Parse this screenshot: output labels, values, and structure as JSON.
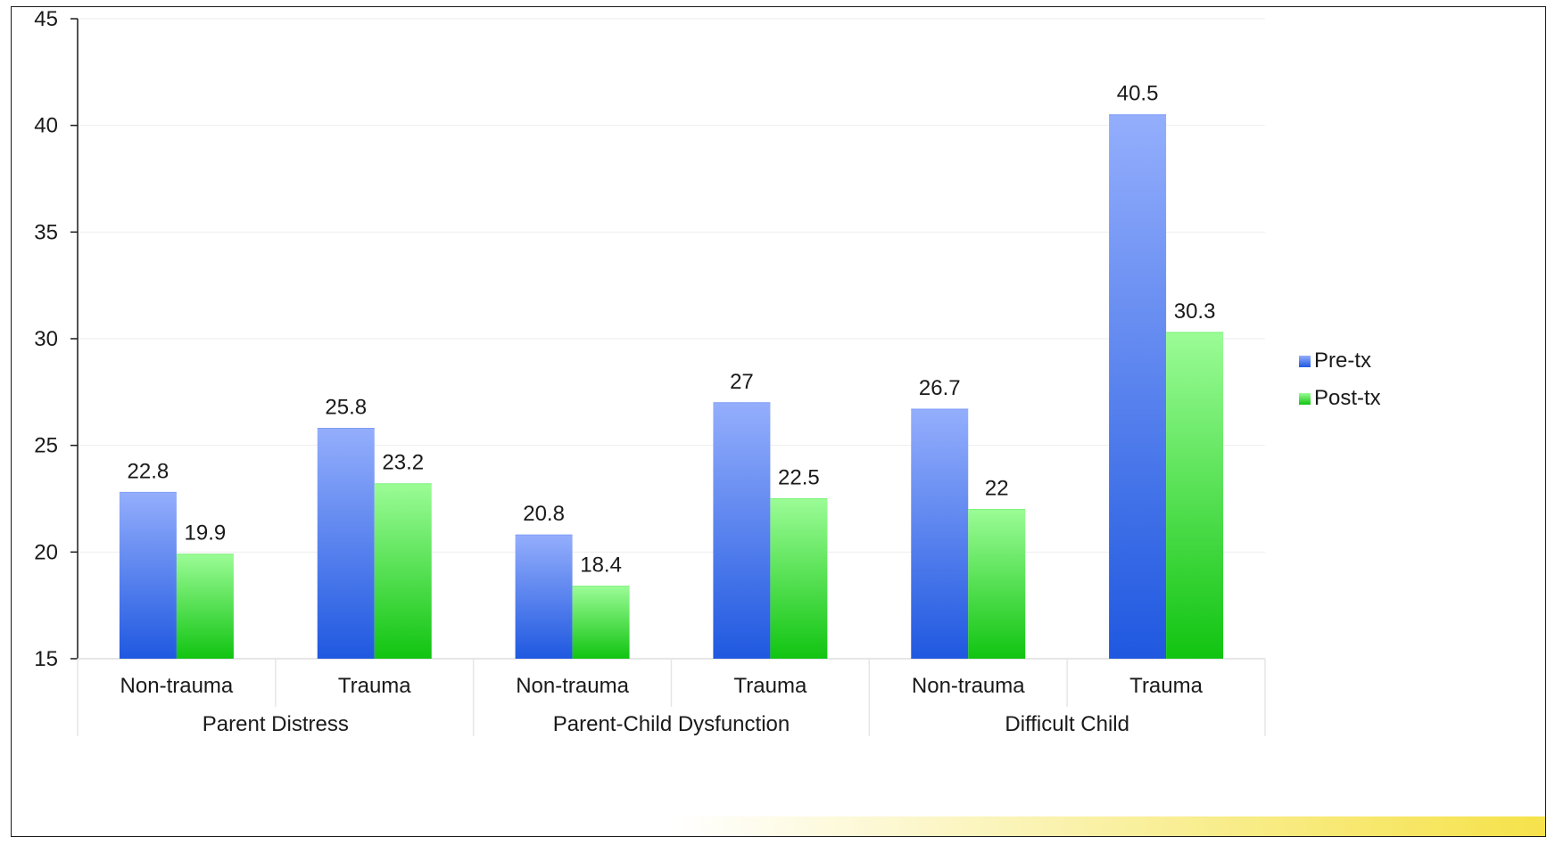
{
  "chart_data": {
    "type": "bar",
    "groups": [
      "Parent Distress",
      "Parent-Child Dysfunction",
      "Difficult Child"
    ],
    "categories": [
      "Non-trauma",
      "Trauma",
      "Non-trauma",
      "Trauma",
      "Non-trauma",
      "Trauma"
    ],
    "category_group_index": [
      0,
      0,
      1,
      1,
      2,
      2
    ],
    "series": [
      {
        "name": "Pre-tx",
        "values": [
          22.8,
          25.8,
          20.8,
          27,
          26.7,
          40.5
        ],
        "value_labels": [
          "22.8",
          "25.8",
          "20.8",
          "27",
          "26.7",
          "40.5"
        ],
        "color": "#4a74e8"
      },
      {
        "name": "Post-tx",
        "values": [
          19.9,
          23.2,
          18.4,
          22.5,
          22,
          30.3
        ],
        "value_labels": [
          "19.9",
          "23.2",
          "18.4",
          "22.5",
          "22",
          "30.3"
        ],
        "color": "#33d433"
      }
    ],
    "title": "",
    "xlabel": "",
    "ylabel": "",
    "ylim": [
      15,
      45
    ],
    "yticks": [
      15,
      20,
      25,
      30,
      35,
      40,
      45
    ],
    "ytick_labels": [
      "15",
      "20",
      "25",
      "30",
      "35",
      "40",
      "45"
    ],
    "grid": true,
    "legend": "right"
  }
}
